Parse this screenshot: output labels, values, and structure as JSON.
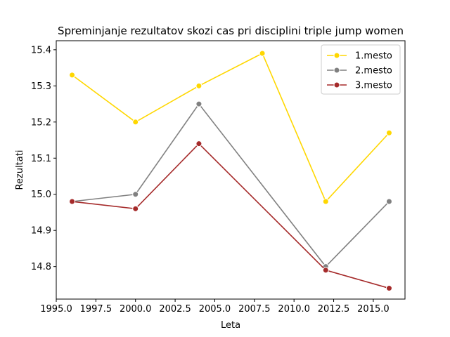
{
  "chart_data": {
    "type": "line",
    "title": "Spreminjanje rezultatov skozi cas pri disciplini triple jump women",
    "xlabel": "Leta",
    "ylabel": "Rezultati",
    "xlim": [
      1995,
      2017
    ],
    "ylim": [
      14.71,
      15.425
    ],
    "x_ticks": [
      "1995.0",
      "1997.5",
      "2000.0",
      "2002.5",
      "2005.0",
      "2007.5",
      "2010.0",
      "2012.5",
      "2015.0"
    ],
    "y_ticks": [
      "14.8",
      "14.9",
      "15.0",
      "15.1",
      "15.2",
      "15.3",
      "15.4"
    ],
    "legend_position": "upper right",
    "grid": false,
    "series": [
      {
        "name": "1.mesto",
        "color": "#FFD700",
        "x": [
          1996,
          2000,
          2004,
          2008,
          2012,
          2016
        ],
        "y": [
          15.33,
          15.2,
          15.3,
          15.39,
          14.98,
          15.17
        ]
      },
      {
        "name": "2.mesto",
        "color": "#808080",
        "x": [
          1996,
          2000,
          2004,
          2012,
          2016
        ],
        "y": [
          14.98,
          15.0,
          15.25,
          14.8,
          14.98
        ]
      },
      {
        "name": "3.mesto",
        "color": "#A52A2A",
        "x": [
          1996,
          2000,
          2004,
          2012,
          2016
        ],
        "y": [
          14.98,
          14.96,
          15.14,
          14.79,
          14.74
        ]
      }
    ]
  }
}
